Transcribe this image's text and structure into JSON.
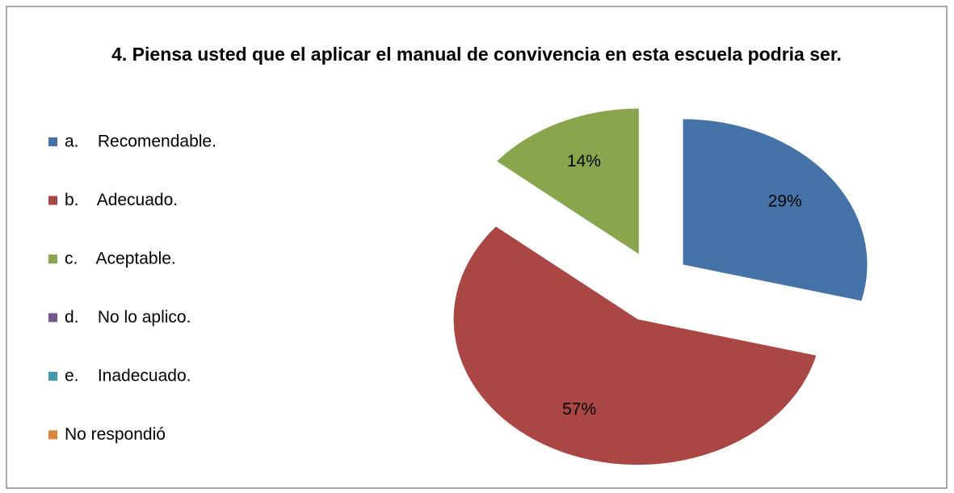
{
  "chart_data": {
    "type": "pie",
    "title": "4.  Piensa usted que el aplicar el manual de convivencia en esta escuela podria ser.",
    "categories": [
      "a.    Recomendable.",
      "b.    Adecuado.",
      "c.    Aceptable.",
      "d.    No lo aplico.",
      "e.    Inadecuado.",
      "No respondió"
    ],
    "values": [
      29,
      57,
      14,
      0,
      0,
      0
    ],
    "value_labels": [
      "29%",
      "57%",
      "14%",
      null,
      null,
      null
    ],
    "colors": [
      "#4572a7",
      "#aa4643",
      "#89a54e",
      "#71588f",
      "#4198af",
      "#db843d"
    ],
    "legend": "left"
  }
}
